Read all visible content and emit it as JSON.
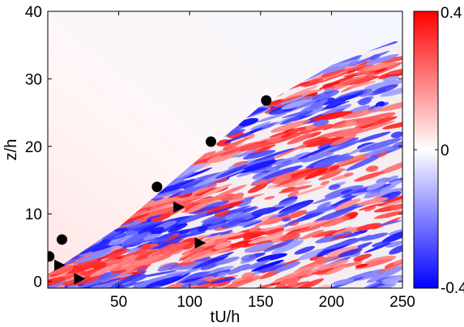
{
  "chart_data": {
    "type": "heatmap",
    "title": "",
    "xlabel": "tU/h",
    "ylabel": "z/h",
    "xlim": [
      0,
      250
    ],
    "ylim": [
      -1,
      40
    ],
    "x_ticks": [
      50,
      100,
      150,
      200,
      250
    ],
    "x_tick_labels": [
      "50",
      "100",
      "150",
      "200",
      "250"
    ],
    "y_ticks": [
      0,
      10,
      20,
      30,
      40
    ],
    "y_tick_labels": [
      "0",
      "10",
      "20",
      "30",
      "40"
    ],
    "colorbar": {
      "range": [
        -0.4,
        0.4
      ],
      "ticks": [
        -0.4,
        0,
        0.4
      ],
      "tick_labels": [
        "-0.4",
        "0",
        "0.4"
      ],
      "colormap": [
        "#0000ff",
        "#ffffff",
        "#ff0000"
      ]
    },
    "colors": {
      "negative": "#0000ff",
      "zero": "#ffffff",
      "positive": "#ff0000"
    },
    "field_boundary": [
      {
        "x": 0,
        "z": 1
      },
      {
        "x": 50,
        "z": 8
      },
      {
        "x": 100,
        "z": 17
      },
      {
        "x": 150,
        "z": 26
      },
      {
        "x": 200,
        "z": 32
      },
      {
        "x": 250,
        "z": 36
      }
    ],
    "series": [
      {
        "marker": "circle",
        "color": "#000000",
        "points": [
          {
            "x": 1,
            "y": 3.7
          },
          {
            "x": 10,
            "y": 6.2
          },
          {
            "x": 77,
            "y": 14
          },
          {
            "x": 115,
            "y": 20.7
          },
          {
            "x": 154,
            "y": 26.8
          }
        ]
      },
      {
        "marker": "triangle-right",
        "color": "#000000",
        "points": [
          {
            "x": 8,
            "y": 2.4
          },
          {
            "x": 22,
            "y": 0.4
          },
          {
            "x": 92,
            "y": 11
          },
          {
            "x": 107,
            "y": 5.7
          }
        ]
      }
    ]
  }
}
